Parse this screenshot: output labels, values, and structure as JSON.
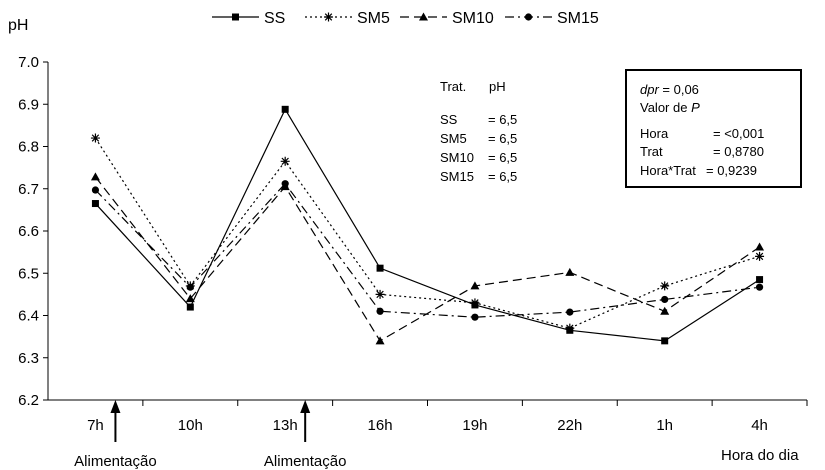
{
  "chart_data": {
    "type": "line",
    "ylabel": "pH",
    "xlabel": "Hora do dia",
    "ylim": [
      6.2,
      7.0
    ],
    "y_ticks": [
      "6.2",
      "6.3",
      "6.4",
      "6.5",
      "6.6",
      "6.7",
      "6.8",
      "6.9",
      "7.0"
    ],
    "categories": [
      "7h",
      "10h",
      "13h",
      "16h",
      "19h",
      "22h",
      "1h",
      "4h"
    ],
    "grid": false,
    "legend_position": "top",
    "series": [
      {
        "name": "SS",
        "marker": "square",
        "dash": "solid",
        "values": [
          6.665,
          6.42,
          6.888,
          6.512,
          6.425,
          6.365,
          6.34,
          6.485
        ]
      },
      {
        "name": "SM5",
        "marker": "asterisk",
        "dash": "dotted",
        "values": [
          6.82,
          6.47,
          6.765,
          6.45,
          6.43,
          6.37,
          6.47,
          6.54
        ]
      },
      {
        "name": "SM10",
        "marker": "triangle",
        "dash": "dashed",
        "values": [
          6.728,
          6.44,
          6.705,
          6.34,
          6.47,
          6.502,
          6.41,
          6.562
        ]
      },
      {
        "name": "SM15",
        "marker": "circle",
        "dash": "dash-dot",
        "values": [
          6.697,
          6.467,
          6.712,
          6.41,
          6.396,
          6.408,
          6.438,
          6.467
        ]
      }
    ],
    "annotations": {
      "feeding_arrows": [
        {
          "category": "7h",
          "label": "Alimentação"
        },
        {
          "category": "13h",
          "label": "Alimentação"
        }
      ],
      "mean_table": {
        "header": [
          "Trat.",
          "pH"
        ],
        "rows": [
          [
            "SS",
            "= 6,5"
          ],
          [
            "SM5",
            "= 6,5"
          ],
          [
            "SM10",
            "= 6,5"
          ],
          [
            "SM15",
            "= 6,5"
          ]
        ]
      },
      "stats_box": {
        "dpr_label": "dpr",
        "dpr_value": " = 0,06",
        "p_label": "Valor de ",
        "p_symbol": "P",
        "rows": [
          [
            "Hora",
            "= <0,001"
          ],
          [
            "Trat",
            "= 0,8780"
          ],
          [
            "Hora*Trat",
            "= 0,9239"
          ]
        ]
      }
    }
  }
}
